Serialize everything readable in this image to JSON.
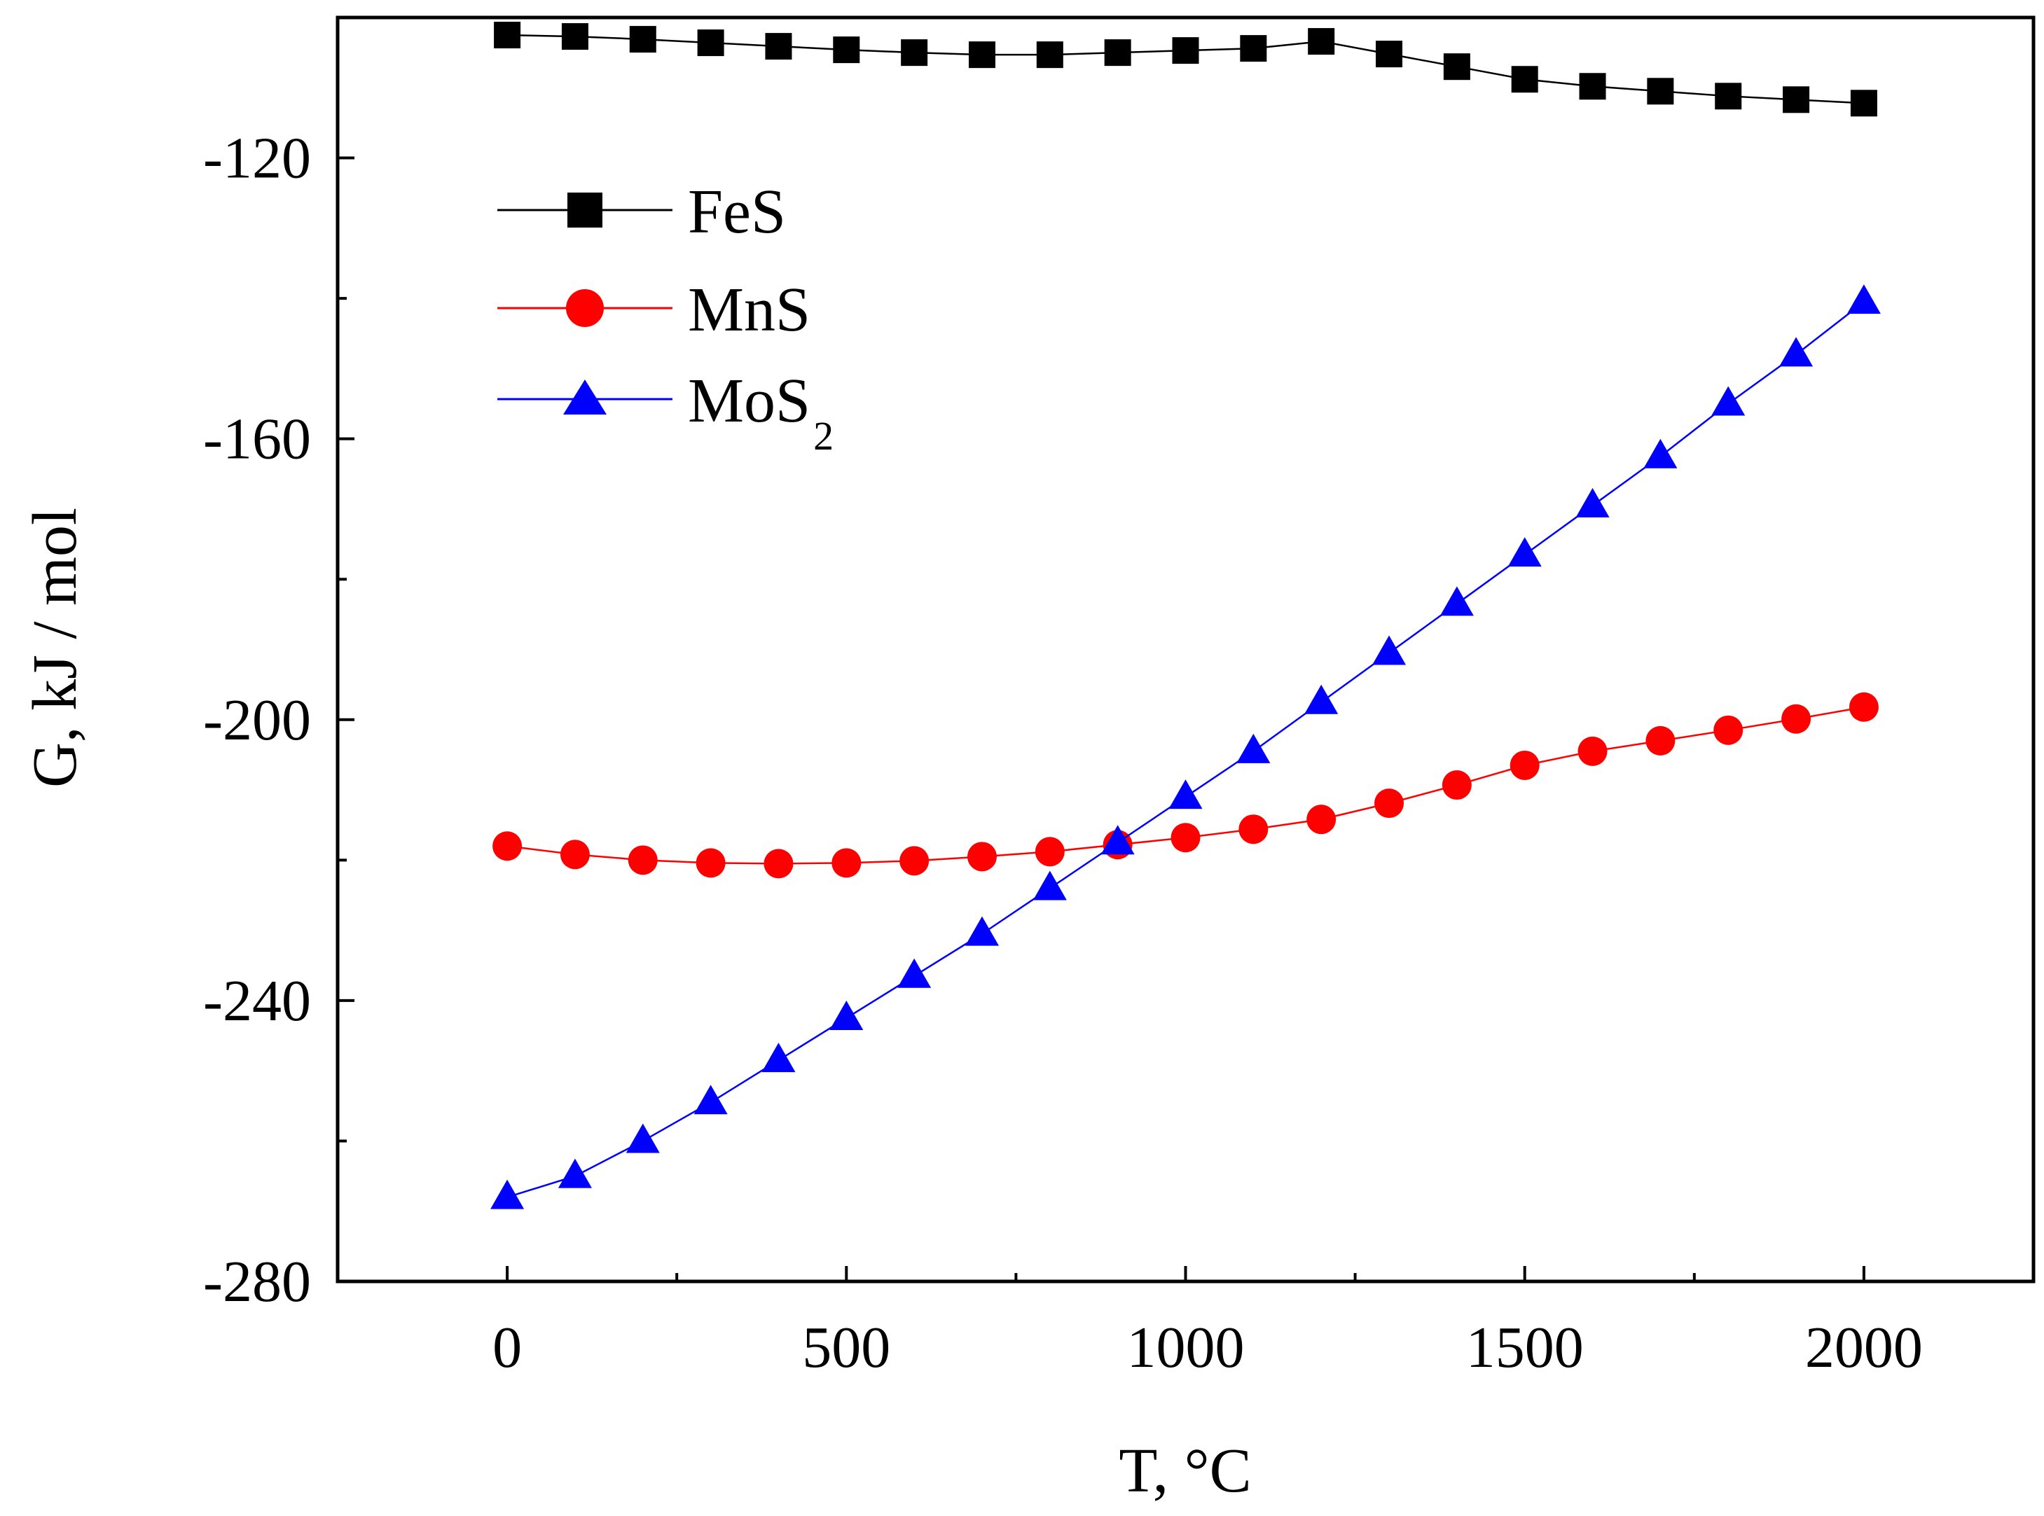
{
  "chart_data": {
    "type": "line",
    "title": "",
    "xlabel": "T, °C",
    "ylabel": "G, kJ / mol",
    "xlim": [
      -250,
      2250
    ],
    "ylim": [
      -280,
      -100
    ],
    "x_ticks": [
      0,
      500,
      1000,
      1500,
      2000
    ],
    "x_tick_labels": [
      "0",
      "500",
      "1000",
      "1500",
      "2000"
    ],
    "y_ticks": [
      -280,
      -240,
      -200,
      -160,
      -120
    ],
    "y_tick_labels": [
      "-280",
      "-240",
      "-200",
      "-160",
      "-120"
    ],
    "grid": false,
    "legend_position": "top-left",
    "x": [
      0,
      100,
      200,
      300,
      400,
      500,
      600,
      700,
      800,
      900,
      1000,
      1100,
      1200,
      1300,
      1400,
      1500,
      1600,
      1700,
      1800,
      1900,
      2000
    ],
    "series": [
      {
        "name": "FeS",
        "label_main": "FeS",
        "label_sub": "",
        "color": "#000000",
        "marker": "square",
        "values": [
          -102.5,
          -102.7,
          -103.1,
          -103.6,
          -104.1,
          -104.6,
          -105.0,
          -105.3,
          -105.3,
          -105.0,
          -104.7,
          -104.4,
          -103.4,
          -105.2,
          -107.0,
          -108.8,
          -109.8,
          -110.5,
          -111.2,
          -111.7,
          -112.2
        ]
      },
      {
        "name": "MnS",
        "label_main": "MnS",
        "label_sub": "",
        "color": "#ff0000",
        "marker": "circle",
        "values": [
          -218.0,
          -219.2,
          -220.0,
          -220.4,
          -220.5,
          -220.4,
          -220.1,
          -219.5,
          -218.8,
          -217.8,
          -216.8,
          -215.6,
          -214.2,
          -211.9,
          -209.3,
          -206.5,
          -204.5,
          -203.0,
          -201.5,
          -199.9,
          -198.2
        ]
      },
      {
        "name": "MoS2",
        "label_main": "MoS",
        "label_sub": "2",
        "color": "#0000ff",
        "marker": "triangle",
        "values": [
          -268.0,
          -265.0,
          -260.0,
          -254.5,
          -248.5,
          -242.5,
          -236.5,
          -230.5,
          -224.0,
          -217.5,
          -211.0,
          -204.5,
          -197.5,
          -190.5,
          -183.5,
          -176.5,
          -169.5,
          -162.5,
          -155.0,
          -148.0,
          -140.5
        ]
      }
    ]
  }
}
